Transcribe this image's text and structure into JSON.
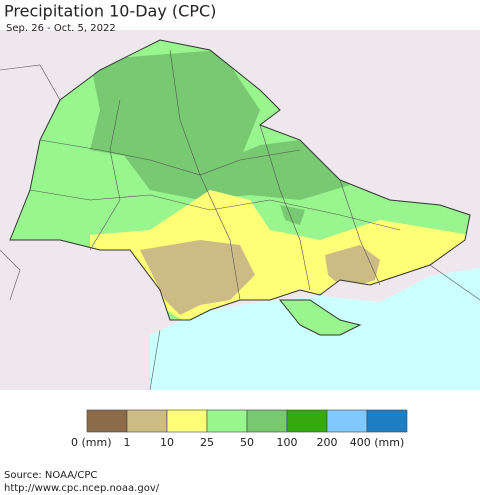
{
  "title": "Precipitation 10-Day (CPC)",
  "subtitle": "Sep. 26 - Oct. 5, 2022",
  "legend": {
    "colors": [
      "#8b6b4a",
      "#cdbb86",
      "#ffff77",
      "#99f58d",
      "#79c972",
      "#35aa0e",
      "#80c9ff",
      "#1f7fc5"
    ],
    "labels": [
      "0 (mm)",
      "1",
      "10",
      "25",
      "50",
      "100",
      "200",
      "400 (mm)"
    ]
  },
  "source": [
    "Source: NOAA/CPC",
    "http://www.cpc.ncep.noaa.gov/"
  ]
}
